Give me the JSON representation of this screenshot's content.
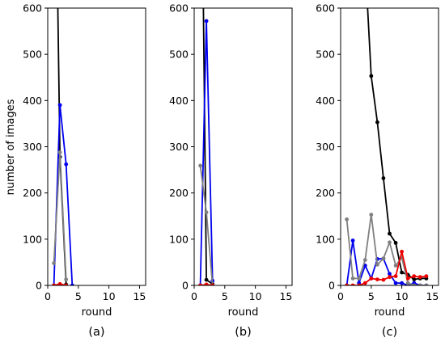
{
  "figure": {
    "ylabel": "number of images",
    "captions": [
      "(a)",
      "(b)",
      "(c)"
    ]
  },
  "chart_data": [
    {
      "type": "line",
      "xlabel": "round",
      "ylabel": "number of images",
      "caption": "(a)",
      "xlim": [
        0,
        16
      ],
      "ylim": [
        0,
        600
      ],
      "xticks": [
        0,
        5,
        10,
        15
      ],
      "yticks": [
        0,
        100,
        200,
        300,
        400,
        500,
        600
      ],
      "grid": false,
      "series": [
        {
          "color": "#000000",
          "x": [
            1,
            2,
            3
          ],
          "y": [
            1200,
            278,
            2
          ]
        },
        {
          "color": "#0000ee",
          "x": [
            1,
            2,
            3,
            4
          ],
          "y": [
            0,
            390,
            262,
            0
          ]
        },
        {
          "color": "#808080",
          "x": [
            1,
            2,
            3
          ],
          "y": [
            48,
            288,
            13
          ]
        },
        {
          "color": "#ee0000",
          "x": [
            1,
            2,
            3
          ],
          "y": [
            0,
            3,
            0
          ]
        }
      ]
    },
    {
      "type": "line",
      "xlabel": "round",
      "caption": "(b)",
      "xlim": [
        0,
        16
      ],
      "ylim": [
        0,
        600
      ],
      "xticks": [
        0,
        5,
        10,
        15
      ],
      "yticks": [
        0,
        100,
        200,
        300,
        400,
        500,
        600
      ],
      "grid": false,
      "series": [
        {
          "color": "#000000",
          "x": [
            1,
            2,
            3
          ],
          "y": [
            1200,
            12,
            3
          ]
        },
        {
          "color": "#0000ee",
          "x": [
            1,
            2,
            3
          ],
          "y": [
            0,
            572,
            10
          ]
        },
        {
          "color": "#808080",
          "x": [
            1,
            2,
            3
          ],
          "y": [
            259,
            158,
            0
          ]
        },
        {
          "color": "#ee0000",
          "x": [
            1,
            2,
            3
          ],
          "y": [
            0,
            2,
            0
          ]
        }
      ]
    },
    {
      "type": "line",
      "xlabel": "round",
      "caption": "(c)",
      "xlim": [
        0,
        16
      ],
      "ylim": [
        0,
        600
      ],
      "xticks": [
        0,
        5,
        10,
        15
      ],
      "yticks": [
        0,
        100,
        200,
        300,
        400,
        500,
        600
      ],
      "grid": false,
      "series": [
        {
          "color": "#000000",
          "x": [
            4,
            5,
            6,
            7,
            8,
            9,
            10,
            11,
            12,
            13,
            14
          ],
          "y": [
            700,
            453,
            353,
            232,
            112,
            92,
            28,
            23,
            13,
            15,
            15
          ]
        },
        {
          "color": "#0000ee",
          "x": [
            1,
            2,
            3,
            4,
            5,
            6,
            7,
            8,
            9,
            10,
            11,
            12,
            13,
            14
          ],
          "y": [
            0,
            97,
            5,
            43,
            15,
            57,
            58,
            25,
            5,
            5,
            0,
            5,
            0,
            0
          ]
        },
        {
          "color": "#808080",
          "x": [
            1,
            2,
            3,
            4,
            5,
            6,
            7,
            8,
            9,
            10,
            11,
            12,
            13,
            14
          ],
          "y": [
            143,
            15,
            15,
            55,
            153,
            45,
            58,
            93,
            43,
            60,
            5,
            0,
            0,
            0
          ]
        },
        {
          "color": "#ee0000",
          "x": [
            1,
            2,
            3,
            4,
            5,
            6,
            7,
            8,
            9,
            10,
            11,
            12,
            13,
            14
          ],
          "y": [
            0,
            0,
            0,
            5,
            15,
            13,
            12,
            18,
            20,
            73,
            15,
            20,
            18,
            20
          ]
        }
      ]
    }
  ]
}
